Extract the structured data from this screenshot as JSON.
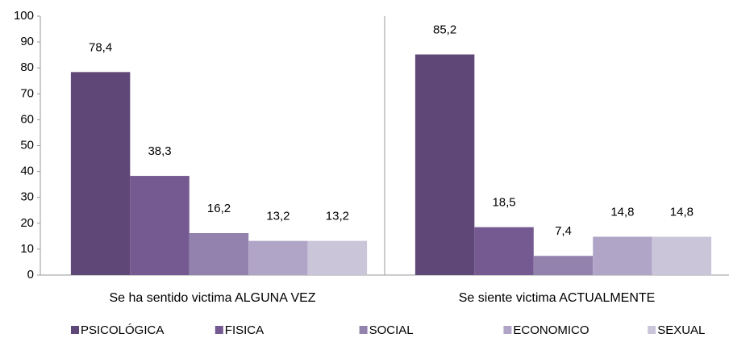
{
  "chart_data": {
    "type": "bar",
    "categories": [
      "Se ha sentido victima ALGUNA VEZ",
      "Se siente victima ACTUALMENTE"
    ],
    "series": [
      {
        "name": "PSICOLÓGICA",
        "color": "#5f4778",
        "values": [
          78.4,
          85.2
        ],
        "value_labels": [
          "78,4",
          "85,2"
        ]
      },
      {
        "name": "FISICA",
        "color": "#745a91",
        "values": [
          38.3,
          18.5
        ],
        "value_labels": [
          "38,3",
          "18,5"
        ]
      },
      {
        "name": "SOCIAL",
        "color": "#9381ae",
        "values": [
          16.2,
          7.4
        ],
        "value_labels": [
          "16,2",
          "7,4"
        ]
      },
      {
        "name": "ECONOMICO",
        "color": "#b0a5c7",
        "values": [
          13.2,
          14.8
        ],
        "value_labels": [
          "13,2",
          "14,8"
        ]
      },
      {
        "name": "SEXUAL",
        "color": "#cbc5da",
        "values": [
          13.2,
          14.8
        ],
        "value_labels": [
          "13,2",
          "14,8"
        ]
      }
    ],
    "ylim": [
      0,
      100
    ],
    "yticks": [
      0,
      10,
      20,
      30,
      40,
      50,
      60,
      70,
      80,
      90,
      100
    ],
    "grid": false,
    "legend": "bottom"
  }
}
